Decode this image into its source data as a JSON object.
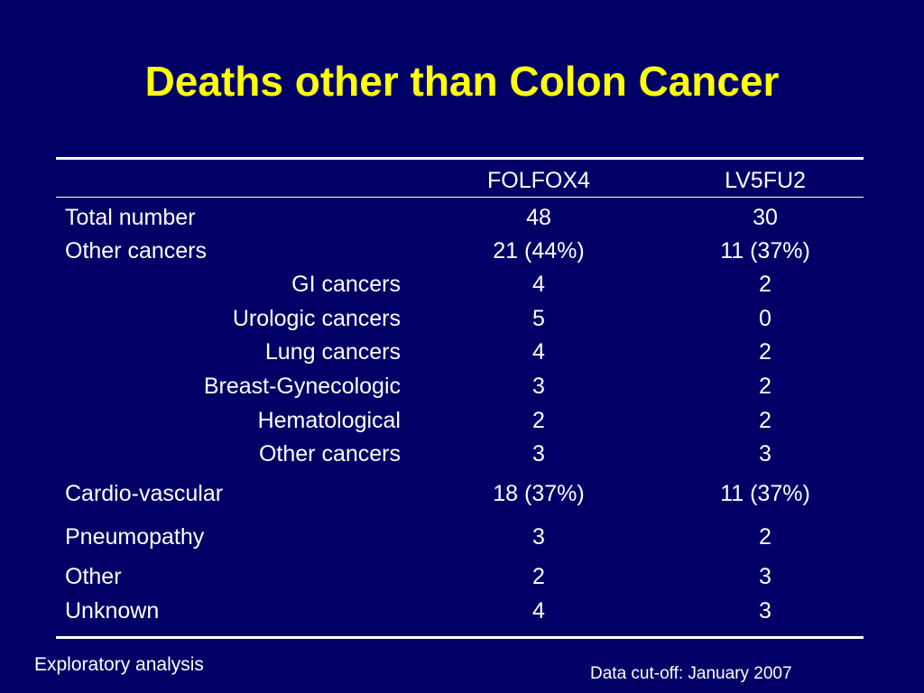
{
  "title": "Deaths other than Colon Cancer",
  "table": {
    "headers": [
      "",
      "FOLFOX4",
      "LV5FU2"
    ],
    "rows": [
      {
        "label": "Total number",
        "indent": false,
        "folfox4": "48",
        "lv5fu2": "30"
      },
      {
        "label": "Other cancers",
        "indent": false,
        "folfox4": "21 (44%)",
        "lv5fu2": "11 (37%)"
      },
      {
        "label": "GI cancers",
        "indent": true,
        "folfox4": "4",
        "lv5fu2": "2"
      },
      {
        "label": "Urologic cancers",
        "indent": true,
        "folfox4": "5",
        "lv5fu2": "0"
      },
      {
        "label": "Lung cancers",
        "indent": true,
        "folfox4": "4",
        "lv5fu2": "2"
      },
      {
        "label": "Breast-Gynecologic",
        "indent": true,
        "folfox4": "3",
        "lv5fu2": "2"
      },
      {
        "label": "Hematological",
        "indent": true,
        "folfox4": "2",
        "lv5fu2": "2"
      },
      {
        "label": "Other cancers",
        "indent": true,
        "folfox4": "3",
        "lv5fu2": "3"
      },
      {
        "label": "Cardio-vascular",
        "indent": false,
        "folfox4": "18 (37%)",
        "lv5fu2": "11 (37%)"
      },
      {
        "label": "Pneumopathy",
        "indent": false,
        "folfox4": "3",
        "lv5fu2": "2"
      },
      {
        "label": "Other",
        "indent": false,
        "folfox4": "2",
        "lv5fu2": "3"
      },
      {
        "label": "Unknown",
        "indent": false,
        "folfox4": "4",
        "lv5fu2": "3"
      }
    ]
  },
  "footnotes": {
    "left": "Exploratory analysis",
    "right": "Data cut-off: January 2007"
  },
  "colors": {
    "background": "#000066",
    "title": "#ffff00",
    "text": "#ffffff"
  }
}
